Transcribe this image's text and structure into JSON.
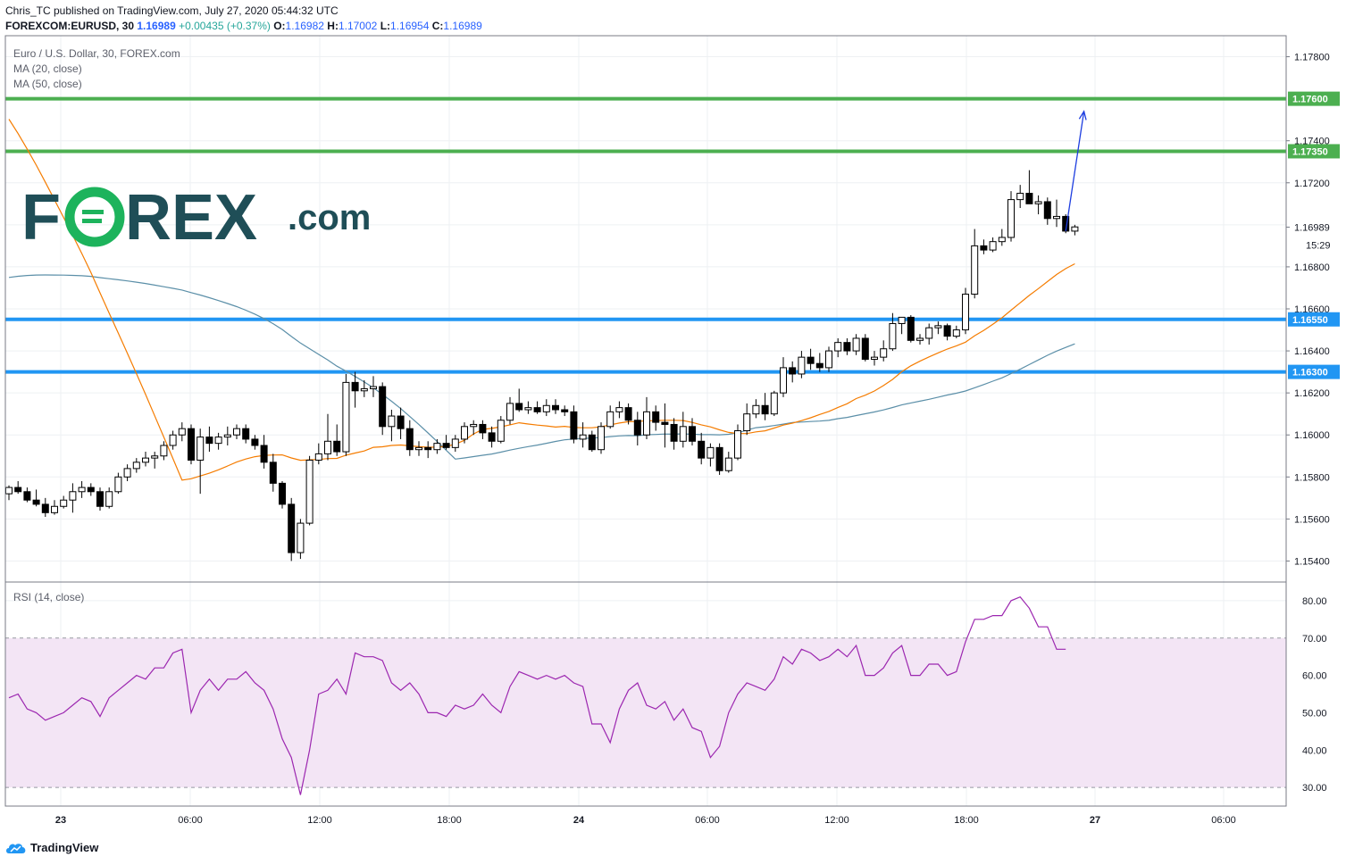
{
  "header": {
    "publisher": "Chris_TC published on TradingView.com, July 27, 2020 05:44:32 UTC",
    "symbol": "FOREXCOM:EURUSD, 30",
    "last": "1.16989",
    "change": "+0.00435 (+0.37%)",
    "o_label": "O:",
    "open": "1.16982",
    "h_label": "H:",
    "high": "1.17002",
    "l_label": "L:",
    "low": "1.16954",
    "c_label": "C:",
    "close": "1.16989"
  },
  "legend": {
    "title": "Euro / U.S. Dollar, 30, FOREX.com",
    "ma20": "MA (20, close)",
    "ma50": "MA (50, close)",
    "rsi": "RSI (14, close)"
  },
  "logo": {
    "text_pre": "F",
    "text_post": "REX",
    "suffix": ".com",
    "color": "#1f4e57",
    "accent": "#1db35c"
  },
  "footer": {
    "brand": "TradingView"
  },
  "price_axis": {
    "ticks": [
      "1.17800",
      "1.17600",
      "1.17400",
      "1.17200",
      "1.16989",
      "1.16800",
      "1.16600",
      "1.16400",
      "1.16200",
      "1.16000",
      "1.15800",
      "1.15600",
      "1.15400"
    ],
    "countdown": "15:29"
  },
  "rsi_axis": {
    "ticks": [
      "80.00",
      "70.00",
      "60.00",
      "50.00",
      "40.00",
      "30.00"
    ]
  },
  "time_axis": {
    "ticks": [
      "23",
      "06:00",
      "12:00",
      "18:00",
      "24",
      "06:00",
      "12:00",
      "18:00",
      "27",
      "06:00"
    ]
  },
  "colors": {
    "green_level": "#4caf50",
    "blue_level": "#2196f3",
    "ma20": "#f57c00",
    "ma50": "#5b8fa8",
    "rsi": "#9c27b0",
    "rsi_band": "#f3e5f5",
    "arrow": "#1e3ee0"
  },
  "chart_data": [
    {
      "type": "candlestick",
      "title": "Euro / U.S. Dollar, 30, FOREX.com",
      "ylim": [
        1.153,
        1.179
      ],
      "levels": [
        {
          "value": 1.176,
          "label": "1.17600",
          "color": "#4caf50"
        },
        {
          "value": 1.1735,
          "label": "1.17350",
          "color": "#4caf50"
        },
        {
          "value": 1.1655,
          "label": "1.16550",
          "color": "#2196f3"
        },
        {
          "value": 1.163,
          "label": "1.16300",
          "color": "#2196f3"
        }
      ],
      "ohlc": [
        [
          1.1572,
          1.1576,
          1.1569,
          1.1575
        ],
        [
          1.1575,
          1.1578,
          1.1572,
          1.1573
        ],
        [
          1.1573,
          1.1575,
          1.1568,
          1.1569
        ],
        [
          1.1569,
          1.1574,
          1.1566,
          1.1567
        ],
        [
          1.1567,
          1.157,
          1.1561,
          1.1563
        ],
        [
          1.1563,
          1.1569,
          1.1562,
          1.1566
        ],
        [
          1.1566,
          1.1571,
          1.1565,
          1.1569
        ],
        [
          1.1569,
          1.1577,
          1.1563,
          1.1573
        ],
        [
          1.1573,
          1.1578,
          1.157,
          1.1575
        ],
        [
          1.1575,
          1.1577,
          1.1571,
          1.1573
        ],
        [
          1.1573,
          1.1575,
          1.1564,
          1.1566
        ],
        [
          1.1566,
          1.1575,
          1.1565,
          1.1573
        ],
        [
          1.1573,
          1.1582,
          1.1572,
          1.158
        ],
        [
          1.158,
          1.1586,
          1.1578,
          1.1584
        ],
        [
          1.1584,
          1.1589,
          1.1582,
          1.1587
        ],
        [
          1.1587,
          1.1592,
          1.1585,
          1.1589
        ],
        [
          1.1589,
          1.1592,
          1.1584,
          1.159
        ],
        [
          1.159,
          1.1597,
          1.1588,
          1.1595
        ],
        [
          1.1595,
          1.1602,
          1.1593,
          1.16
        ],
        [
          1.16,
          1.1606,
          1.1597,
          1.1603
        ],
        [
          1.1603,
          1.1605,
          1.1586,
          1.1588
        ],
        [
          1.1588,
          1.1603,
          1.1572,
          1.1599
        ],
        [
          1.1599,
          1.1604,
          1.1592,
          1.1596
        ],
        [
          1.1596,
          1.1601,
          1.1593,
          1.1599
        ],
        [
          1.1599,
          1.1604,
          1.1595,
          1.16
        ],
        [
          1.16,
          1.1605,
          1.1598,
          1.1603
        ],
        [
          1.1603,
          1.1605,
          1.1596,
          1.1598
        ],
        [
          1.1598,
          1.16,
          1.1593,
          1.1595
        ],
        [
          1.1595,
          1.16,
          1.1584,
          1.1587
        ],
        [
          1.1587,
          1.1591,
          1.1573,
          1.1577
        ],
        [
          1.1577,
          1.1578,
          1.1565,
          1.1567
        ],
        [
          1.1567,
          1.157,
          1.154,
          1.1544
        ],
        [
          1.1544,
          1.156,
          1.1541,
          1.1558
        ],
        [
          1.1558,
          1.159,
          1.1557,
          1.1588
        ],
        [
          1.1588,
          1.1596,
          1.1586,
          1.1591
        ],
        [
          1.1591,
          1.161,
          1.1588,
          1.1597
        ],
        [
          1.1597,
          1.1605,
          1.159,
          1.1592
        ],
        [
          1.1592,
          1.1629,
          1.159,
          1.1625
        ],
        [
          1.1625,
          1.163,
          1.1613,
          1.1621
        ],
        [
          1.1621,
          1.1626,
          1.1618,
          1.1622
        ],
        [
          1.1622,
          1.1628,
          1.1618,
          1.1623
        ],
        [
          1.1623,
          1.1625,
          1.16,
          1.1604
        ],
        [
          1.1604,
          1.1612,
          1.1597,
          1.1609
        ],
        [
          1.1609,
          1.1613,
          1.1598,
          1.1603
        ],
        [
          1.1603,
          1.1607,
          1.159,
          1.1593
        ],
        [
          1.1593,
          1.1597,
          1.159,
          1.1594
        ],
        [
          1.1594,
          1.1597,
          1.1589,
          1.1593
        ],
        [
          1.1593,
          1.1598,
          1.1591,
          1.1596
        ],
        [
          1.1596,
          1.16,
          1.1593,
          1.1594
        ],
        [
          1.1594,
          1.16,
          1.1592,
          1.1598
        ],
        [
          1.1598,
          1.1606,
          1.1596,
          1.1604
        ],
        [
          1.1604,
          1.1607,
          1.16,
          1.1605
        ],
        [
          1.1605,
          1.1607,
          1.1598,
          1.1601
        ],
        [
          1.1601,
          1.1604,
          1.1594,
          1.1597
        ],
        [
          1.1597,
          1.1609,
          1.1596,
          1.1607
        ],
        [
          1.1607,
          1.1618,
          1.1605,
          1.1615
        ],
        [
          1.1615,
          1.1622,
          1.1611,
          1.1612
        ],
        [
          1.1612,
          1.1616,
          1.161,
          1.1613
        ],
        [
          1.1613,
          1.1616,
          1.161,
          1.1611
        ],
        [
          1.1611,
          1.1617,
          1.1609,
          1.1614
        ],
        [
          1.1614,
          1.1617,
          1.161,
          1.1612
        ],
        [
          1.1612,
          1.1614,
          1.1609,
          1.1611
        ],
        [
          1.1611,
          1.1614,
          1.1596,
          1.1598
        ],
        [
          1.1598,
          1.1606,
          1.1594,
          1.16
        ],
        [
          1.16,
          1.1602,
          1.1592,
          1.1593
        ],
        [
          1.1593,
          1.1606,
          1.1591,
          1.1604
        ],
        [
          1.1604,
          1.1614,
          1.1603,
          1.1611
        ],
        [
          1.1611,
          1.1616,
          1.1608,
          1.1613
        ],
        [
          1.1613,
          1.1615,
          1.1605,
          1.1607
        ],
        [
          1.1607,
          1.1611,
          1.1595,
          1.16
        ],
        [
          1.16,
          1.1618,
          1.1598,
          1.1611
        ],
        [
          1.1611,
          1.1614,
          1.1602,
          1.1606
        ],
        [
          1.1606,
          1.1615,
          1.1594,
          1.1605
        ],
        [
          1.1605,
          1.1608,
          1.1593,
          1.1597
        ],
        [
          1.1597,
          1.1611,
          1.1594,
          1.1604
        ],
        [
          1.1604,
          1.1608,
          1.1595,
          1.1597
        ],
        [
          1.1597,
          1.1601,
          1.1586,
          1.1589
        ],
        [
          1.1589,
          1.1596,
          1.1585,
          1.1594
        ],
        [
          1.1594,
          1.1596,
          1.1581,
          1.1583
        ],
        [
          1.1583,
          1.1592,
          1.1582,
          1.1589
        ],
        [
          1.1589,
          1.1605,
          1.1588,
          1.1602
        ],
        [
          1.1602,
          1.1615,
          1.16,
          1.161
        ],
        [
          1.161,
          1.1617,
          1.1608,
          1.1614
        ],
        [
          1.1614,
          1.162,
          1.1607,
          1.161
        ],
        [
          1.161,
          1.1621,
          1.1609,
          1.162
        ],
        [
          1.162,
          1.1637,
          1.1618,
          1.1632
        ],
        [
          1.1632,
          1.1635,
          1.1625,
          1.1629
        ],
        [
          1.1629,
          1.164,
          1.1627,
          1.1637
        ],
        [
          1.1637,
          1.1641,
          1.1631,
          1.1634
        ],
        [
          1.1634,
          1.1639,
          1.163,
          1.1632
        ],
        [
          1.1632,
          1.1642,
          1.163,
          1.164
        ],
        [
          1.164,
          1.1646,
          1.1637,
          1.1644
        ],
        [
          1.1644,
          1.1646,
          1.1638,
          1.164
        ],
        [
          1.164,
          1.1648,
          1.1638,
          1.1646
        ],
        [
          1.1646,
          1.1648,
          1.1635,
          1.1636
        ],
        [
          1.1636,
          1.164,
          1.1633,
          1.1637
        ],
        [
          1.1637,
          1.1645,
          1.1635,
          1.1641
        ],
        [
          1.1641,
          1.1658,
          1.164,
          1.1653
        ],
        [
          1.1653,
          1.1656,
          1.1648,
          1.1656
        ],
        [
          1.1656,
          1.1657,
          1.1644,
          1.1645
        ],
        [
          1.1645,
          1.1648,
          1.1643,
          1.1646
        ],
        [
          1.1646,
          1.1653,
          1.1643,
          1.1651
        ],
        [
          1.1651,
          1.1654,
          1.1648,
          1.1652
        ],
        [
          1.1652,
          1.1653,
          1.1645,
          1.1647
        ],
        [
          1.1647,
          1.1652,
          1.1646,
          1.165
        ],
        [
          1.165,
          1.167,
          1.1648,
          1.1667
        ],
        [
          1.1667,
          1.1698,
          1.1665,
          1.169
        ],
        [
          1.169,
          1.1693,
          1.1686,
          1.1688
        ],
        [
          1.1688,
          1.1694,
          1.1687,
          1.1692
        ],
        [
          1.1692,
          1.1698,
          1.169,
          1.1694
        ],
        [
          1.1694,
          1.1716,
          1.1692,
          1.1712
        ],
        [
          1.1712,
          1.1719,
          1.1708,
          1.1715
        ],
        [
          1.1715,
          1.1726,
          1.171,
          1.171
        ],
        [
          1.171,
          1.1714,
          1.1705,
          1.1711
        ],
        [
          1.1711,
          1.1713,
          1.17,
          1.1703
        ],
        [
          1.1703,
          1.1712,
          1.1699,
          1.1704
        ],
        [
          1.1704,
          1.1705,
          1.1696,
          1.1697
        ],
        [
          1.1697,
          1.17,
          1.1695,
          1.1699
        ]
      ],
      "projection": [
        [
          116,
          1.1697
        ],
        [
          118,
          1.1754
        ]
      ]
    },
    {
      "type": "line",
      "title": "RSI (14, close)",
      "ylim": [
        25,
        85
      ],
      "band": [
        30,
        70
      ],
      "values": [
        54,
        55,
        51,
        50,
        48,
        49,
        50,
        52,
        54,
        53,
        49,
        54,
        56,
        58,
        60,
        59,
        62,
        62,
        66,
        67,
        50,
        56,
        59,
        56,
        59,
        59,
        61,
        58,
        56,
        51,
        43,
        38,
        28,
        40,
        55,
        56,
        59,
        55,
        66,
        65,
        65,
        64,
        58,
        56,
        58,
        55,
        50,
        50,
        49,
        52,
        51,
        52,
        55,
        52,
        50,
        57,
        61,
        60,
        59,
        60,
        59,
        60,
        58,
        57,
        47,
        47,
        42,
        51,
        56,
        58,
        52,
        51,
        53,
        48,
        51,
        46,
        45,
        38,
        41,
        50,
        55,
        58,
        57,
        56,
        59,
        65,
        63,
        67,
        66,
        64,
        65,
        67,
        65,
        68,
        60,
        60,
        62,
        66,
        68,
        60,
        60,
        63,
        63,
        60,
        61,
        69,
        75,
        75,
        76,
        76,
        80,
        81,
        78,
        73,
        73,
        67,
        67
      ],
      "levels": [
        "80.00",
        "70.00",
        "60.00",
        "50.00",
        "40.00",
        "30.00"
      ]
    }
  ]
}
